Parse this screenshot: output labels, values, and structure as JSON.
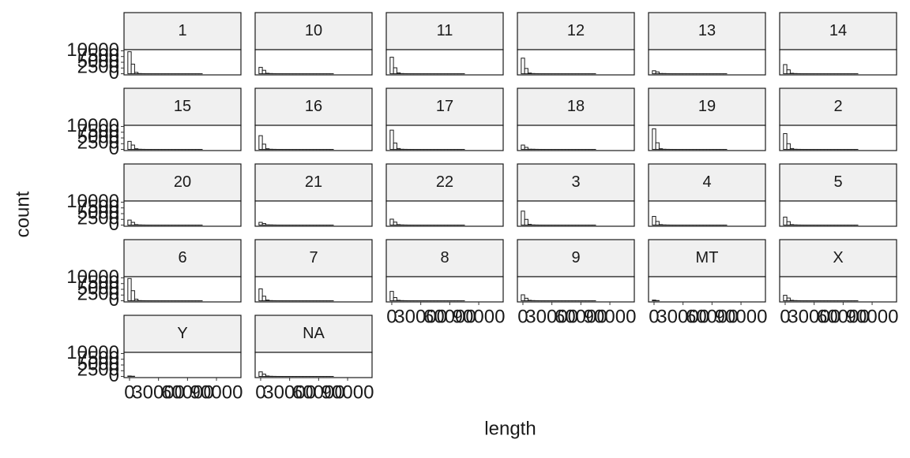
{
  "chart_data": {
    "type": "histogram",
    "x_label": "length",
    "y_label": "count",
    "xlim": [
      -5700,
      115300
    ],
    "ylim": [
      -500,
      10500
    ],
    "xticks": [
      0,
      30000,
      60000,
      90000
    ],
    "yticks": [
      0,
      2500,
      5000,
      7500,
      10000
    ],
    "bar_fill": "#ffffff",
    "bar_stroke": "#1a1a1a",
    "strip_fill": "#f0f0f0",
    "bins": [
      -1750,
      1750,
      5250,
      8750,
      12250,
      15750,
      19250,
      22750,
      26250,
      29750,
      33250,
      36750,
      40250,
      43750,
      47250,
      50750,
      54250,
      57750,
      61250,
      64750,
      68250,
      71750,
      75250,
      78750,
      82250,
      85750,
      89250,
      92750,
      96250,
      99750,
      103250
    ],
    "panels": [
      {
        "title": "1",
        "counts": [
          9600,
          4200,
          600,
          80,
          40,
          20,
          15,
          10,
          8,
          6,
          5,
          4,
          3,
          3,
          2,
          2,
          2,
          1,
          1,
          1,
          1,
          1,
          0,
          0,
          0,
          0,
          0,
          0,
          0,
          0
        ]
      },
      {
        "title": "10",
        "counts": [
          2800,
          1500,
          200,
          80,
          40,
          20,
          15,
          10,
          8,
          6,
          5,
          4,
          3,
          3,
          2,
          2,
          2,
          1,
          1,
          1,
          1,
          1,
          0,
          0,
          0,
          0,
          0,
          0,
          0,
          0
        ]
      },
      {
        "title": "11",
        "counts": [
          7200,
          2600,
          400,
          80,
          40,
          20,
          15,
          10,
          8,
          6,
          5,
          4,
          3,
          3,
          2,
          2,
          2,
          1,
          1,
          1,
          1,
          1,
          0,
          0,
          0,
          0,
          0,
          0,
          0,
          0
        ]
      },
      {
        "title": "12",
        "counts": [
          6800,
          2300,
          300,
          80,
          40,
          20,
          15,
          10,
          8,
          6,
          5,
          4,
          3,
          3,
          2,
          2,
          2,
          1,
          1,
          1,
          1,
          1,
          0,
          0,
          0,
          0,
          0,
          0,
          0,
          0
        ]
      },
      {
        "title": "13",
        "counts": [
          1300,
          800,
          100,
          80,
          40,
          20,
          15,
          10,
          8,
          6,
          5,
          4,
          3,
          3,
          2,
          2,
          2,
          1,
          1,
          1,
          1,
          1,
          0,
          0,
          0,
          0,
          0,
          0,
          0,
          0
        ]
      },
      {
        "title": "14",
        "counts": [
          4000,
          1700,
          200,
          80,
          40,
          20,
          15,
          10,
          8,
          6,
          5,
          4,
          3,
          3,
          2,
          2,
          2,
          1,
          1,
          1,
          1,
          1,
          0,
          0,
          0,
          0,
          0,
          0,
          0,
          0
        ]
      },
      {
        "title": "15",
        "counts": [
          3500,
          1900,
          300,
          80,
          40,
          20,
          15,
          10,
          8,
          6,
          5,
          4,
          3,
          3,
          2,
          2,
          2,
          1,
          1,
          1,
          1,
          1,
          0,
          0,
          0,
          0,
          0,
          0,
          0,
          0
        ]
      },
      {
        "title": "16",
        "counts": [
          6000,
          2300,
          300,
          80,
          40,
          20,
          15,
          10,
          8,
          6,
          5,
          4,
          3,
          3,
          2,
          2,
          2,
          1,
          1,
          1,
          1,
          1,
          0,
          0,
          0,
          0,
          0,
          0,
          0,
          0
        ]
      },
      {
        "title": "17",
        "counts": [
          8400,
          2800,
          400,
          80,
          40,
          20,
          15,
          10,
          8,
          6,
          5,
          4,
          3,
          3,
          2,
          2,
          2,
          1,
          1,
          1,
          1,
          1,
          0,
          0,
          0,
          0,
          0,
          0,
          0,
          0
        ]
      },
      {
        "title": "18",
        "counts": [
          1900,
          900,
          100,
          80,
          40,
          20,
          15,
          10,
          8,
          6,
          5,
          4,
          3,
          3,
          2,
          2,
          2,
          1,
          1,
          1,
          1,
          1,
          0,
          0,
          0,
          0,
          0,
          0,
          0,
          0
        ]
      },
      {
        "title": "19",
        "counts": [
          9000,
          2900,
          300,
          80,
          40,
          20,
          15,
          10,
          8,
          6,
          5,
          4,
          3,
          3,
          2,
          2,
          2,
          1,
          1,
          1,
          1,
          1,
          0,
          0,
          0,
          0,
          0,
          0,
          0,
          0
        ]
      },
      {
        "title": "2",
        "counts": [
          6900,
          2500,
          400,
          80,
          40,
          20,
          15,
          10,
          8,
          6,
          5,
          4,
          3,
          3,
          2,
          2,
          2,
          1,
          1,
          1,
          1,
          1,
          0,
          0,
          0,
          0,
          0,
          0,
          0,
          0
        ]
      },
      {
        "title": "20",
        "counts": [
          2200,
          1200,
          200,
          80,
          40,
          20,
          15,
          10,
          8,
          6,
          5,
          4,
          3,
          3,
          2,
          2,
          2,
          1,
          1,
          1,
          1,
          1,
          0,
          0,
          0,
          0,
          0,
          0,
          0,
          0
        ]
      },
      {
        "title": "21",
        "counts": [
          1200,
          700,
          100,
          80,
          40,
          20,
          15,
          10,
          8,
          6,
          5,
          4,
          3,
          3,
          2,
          2,
          2,
          1,
          1,
          1,
          1,
          1,
          0,
          0,
          0,
          0,
          0,
          0,
          0,
          0
        ]
      },
      {
        "title": "22",
        "counts": [
          2600,
          1300,
          200,
          80,
          40,
          20,
          15,
          10,
          8,
          6,
          5,
          4,
          3,
          3,
          2,
          2,
          2,
          1,
          1,
          1,
          1,
          1,
          0,
          0,
          0,
          0,
          0,
          0,
          0,
          0
        ]
      },
      {
        "title": "3",
        "counts": [
          6100,
          2500,
          300,
          80,
          40,
          20,
          15,
          10,
          8,
          6,
          5,
          4,
          3,
          3,
          2,
          2,
          2,
          1,
          1,
          1,
          1,
          1,
          0,
          0,
          0,
          0,
          0,
          0,
          0,
          0
        ]
      },
      {
        "title": "4",
        "counts": [
          3800,
          1600,
          200,
          80,
          40,
          20,
          15,
          10,
          8,
          6,
          5,
          4,
          3,
          3,
          2,
          2,
          2,
          1,
          1,
          1,
          1,
          1,
          0,
          0,
          0,
          0,
          0,
          0,
          0,
          0
        ]
      },
      {
        "title": "5",
        "counts": [
          3500,
          1500,
          200,
          80,
          40,
          20,
          15,
          10,
          8,
          6,
          5,
          4,
          3,
          3,
          2,
          2,
          2,
          1,
          1,
          1,
          1,
          1,
          0,
          0,
          0,
          0,
          0,
          0,
          0,
          0
        ]
      },
      {
        "title": "6",
        "counts": [
          9700,
          4400,
          700,
          80,
          40,
          20,
          15,
          10,
          8,
          6,
          5,
          4,
          3,
          3,
          2,
          2,
          2,
          1,
          1,
          1,
          1,
          1,
          0,
          0,
          0,
          0,
          0,
          0,
          0,
          0
        ]
      },
      {
        "title": "7",
        "counts": [
          5200,
          2000,
          300,
          80,
          40,
          20,
          15,
          10,
          8,
          6,
          5,
          4,
          3,
          3,
          2,
          2,
          2,
          1,
          1,
          1,
          1,
          1,
          0,
          0,
          0,
          0,
          0,
          0,
          0,
          0
        ]
      },
      {
        "title": "8",
        "counts": [
          4100,
          1400,
          200,
          80,
          40,
          20,
          15,
          10,
          8,
          6,
          5,
          4,
          3,
          3,
          2,
          2,
          2,
          1,
          1,
          1,
          1,
          1,
          0,
          0,
          0,
          0,
          0,
          0,
          0,
          0
        ]
      },
      {
        "title": "9",
        "counts": [
          2600,
          1100,
          200,
          80,
          40,
          20,
          15,
          10,
          8,
          6,
          5,
          4,
          3,
          3,
          2,
          2,
          2,
          1,
          1,
          1,
          1,
          1,
          0,
          0,
          0,
          0,
          0,
          0,
          0,
          0
        ]
      },
      {
        "title": "MT",
        "counts": [
          300,
          100,
          0,
          0,
          0,
          0,
          0,
          0,
          0,
          0,
          0,
          0,
          0,
          0,
          0,
          0,
          0,
          0,
          0,
          0,
          0,
          0,
          0,
          0,
          0,
          0,
          0,
          0,
          0,
          0
        ]
      },
      {
        "title": "X",
        "counts": [
          2400,
          1200,
          200,
          80,
          40,
          20,
          15,
          10,
          8,
          6,
          5,
          4,
          3,
          3,
          2,
          2,
          2,
          1,
          1,
          1,
          1,
          1,
          0,
          0,
          0,
          0,
          0,
          0,
          0,
          0
        ]
      },
      {
        "title": "Y",
        "counts": [
          200,
          100,
          0,
          0,
          0,
          0,
          0,
          0,
          0,
          0,
          0,
          0,
          0,
          0,
          0,
          0,
          0,
          0,
          0,
          0,
          0,
          0,
          0,
          0,
          0,
          0,
          0,
          0,
          0,
          0
        ]
      },
      {
        "title": "NA",
        "counts": [
          2000,
          1000,
          200,
          80,
          40,
          20,
          15,
          10,
          8,
          6,
          5,
          4,
          3,
          3,
          2,
          2,
          2,
          1,
          1,
          1,
          1,
          1,
          0,
          0,
          0,
          0,
          0,
          0,
          0,
          0
        ]
      }
    ]
  }
}
